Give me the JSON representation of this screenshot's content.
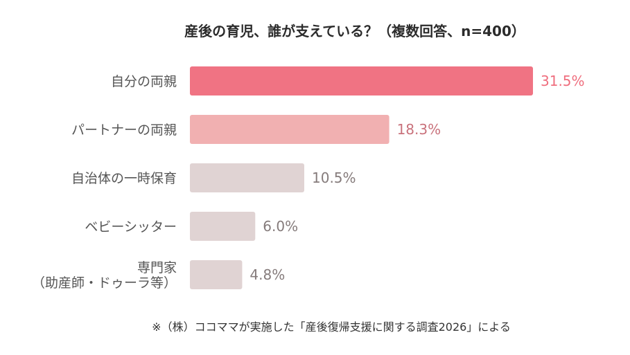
{
  "chart_data": {
    "type": "bar",
    "orientation": "horizontal",
    "title": "産後の育児、誰が支えている？（複数回答、n=400）",
    "categories": [
      [
        "自分の両親"
      ],
      [
        "パートナーの両親"
      ],
      [
        "自治体の一時保育"
      ],
      [
        "ベビーシッター"
      ],
      [
        "専門家",
        "（助産師・ドゥーラ等）"
      ]
    ],
    "values": [
      31.5,
      18.3,
      10.5,
      6.0,
      4.8
    ],
    "value_labels": [
      "31.5%",
      "18.3%",
      "10.5%",
      "6.0%",
      "4.8%"
    ],
    "unit": "%",
    "xlim": [
      0,
      31.5
    ],
    "grid": false,
    "legend": "none",
    "bar_colors": [
      "#f07383",
      "#f1b0b1",
      "#e0d3d3",
      "#e0d3d3",
      "#e0d3d3"
    ],
    "label_colors": [
      "#ef6e7e",
      "#c9727c",
      "#857b7b",
      "#857b7b",
      "#857b7b"
    ],
    "footnote": "※（株）ココママが実施した「産後復帰支援に関する調査2026」による"
  },
  "colors": {
    "title": "#2b2b2b",
    "category_text": "#555555",
    "footnote": "#333333"
  }
}
